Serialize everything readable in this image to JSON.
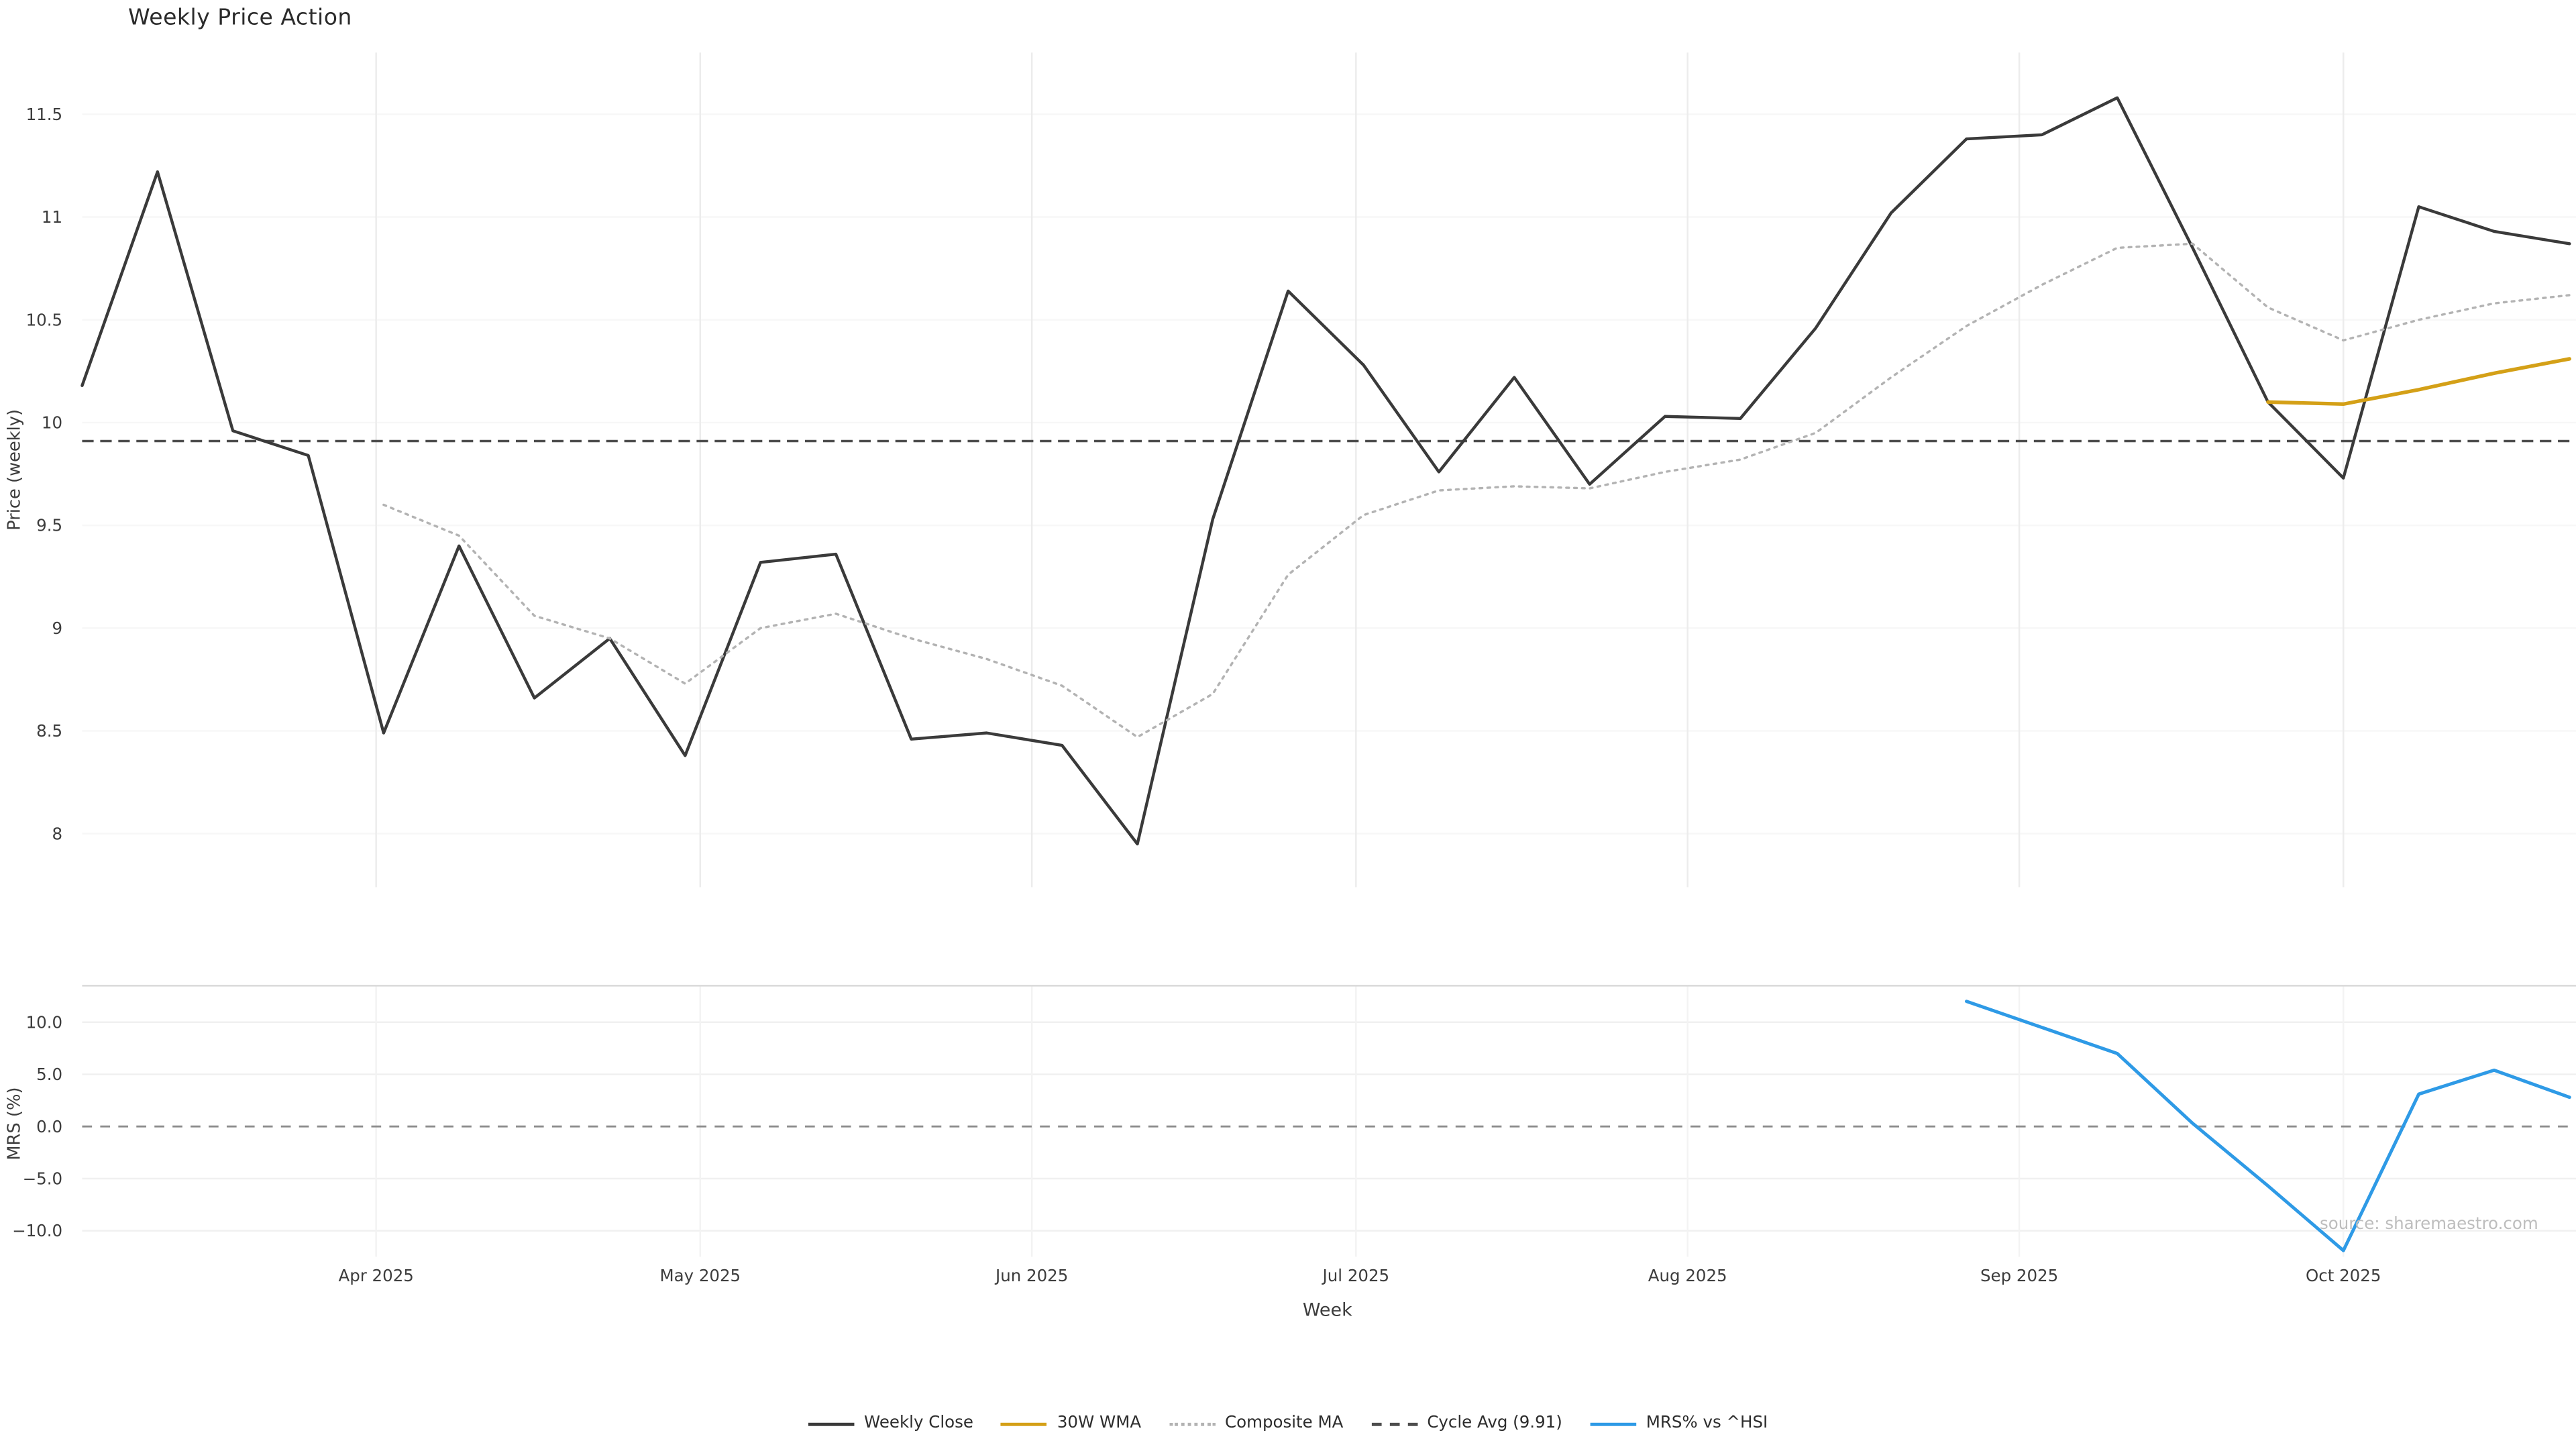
{
  "page": {
    "title": "Weekly Price Action",
    "source_note": "source: sharemaestro.com"
  },
  "axes": {
    "top_ylabel": "Price (weekly)",
    "bottom_ylabel": "MRS (%)",
    "xlabel": "Week"
  },
  "legend": [
    {
      "label": "Weekly Close",
      "color": "#3a3a3a",
      "dash": "solid"
    },
    {
      "label": "30W WMA",
      "color": "#d4a017",
      "dash": "solid"
    },
    {
      "label": "Composite MA",
      "color": "#b3b3b3",
      "dash": "dotted"
    },
    {
      "label": "Cycle Avg (9.91)",
      "color": "#4d4d4d",
      "dash": "dashed"
    },
    {
      "label": "MRS% vs ^HSI",
      "color": "#2e9ae6",
      "dash": "solid"
    }
  ],
  "chart_data": [
    {
      "type": "line",
      "panel": "price",
      "title": "Weekly Price Action",
      "xlabel": "",
      "ylabel": "Price (weekly)",
      "x_unit": "week_index",
      "ylim": [
        7.74,
        11.8
      ],
      "grid": true,
      "yticks": [
        {
          "value": 8,
          "label": "8"
        },
        {
          "value": 8.5,
          "label": "8.5"
        },
        {
          "value": 9,
          "label": "9"
        },
        {
          "value": 9.5,
          "label": "9.5"
        },
        {
          "value": 10,
          "label": "10"
        },
        {
          "value": 10.5,
          "label": "10.5"
        },
        {
          "value": 11,
          "label": "11"
        },
        {
          "value": 11.5,
          "label": "11.5"
        }
      ],
      "series": [
        {
          "name": "Weekly Close",
          "color": "#3a3a3a",
          "dash": "solid",
          "width": 1.8,
          "start_index": 0,
          "values": [
            10.18,
            11.22,
            9.96,
            9.84,
            8.49,
            9.4,
            8.66,
            8.95,
            8.38,
            9.32,
            9.36,
            8.46,
            8.49,
            8.43,
            7.95,
            9.53,
            10.64,
            10.28,
            9.76,
            10.22,
            9.7,
            10.03,
            10.02,
            10.46,
            11.02,
            11.38,
            11.4,
            11.58,
            10.85,
            10.1,
            9.73,
            11.05,
            10.93,
            10.87
          ]
        },
        {
          "name": "30W WMA",
          "color": "#d4a017",
          "dash": "solid",
          "width": 2.2,
          "start_index": 29,
          "values": [
            10.1,
            10.09,
            10.16,
            10.24,
            10.31
          ]
        },
        {
          "name": "Composite MA",
          "color": "#b3b3b3",
          "dash": "dotted",
          "width": 1.4,
          "start_index": 4,
          "values": [
            9.6,
            9.45,
            9.06,
            8.95,
            8.73,
            9.0,
            9.07,
            8.95,
            8.85,
            8.72,
            8.47,
            8.68,
            9.26,
            9.55,
            9.67,
            9.69,
            9.68,
            9.76,
            9.82,
            9.95,
            10.22,
            10.47,
            10.67,
            10.85,
            10.87,
            10.56,
            10.4,
            10.5,
            10.58,
            10.62
          ]
        }
      ],
      "hlines": [
        {
          "label": "Cycle Avg (9.91)",
          "value": 9.91,
          "color": "#4d4d4d",
          "dash": "dashed"
        }
      ]
    },
    {
      "type": "line",
      "panel": "mrs",
      "title": "",
      "xlabel": "Week",
      "ylabel": "MRS (%)",
      "x_unit": "week_index",
      "ylim": [
        -12.5,
        13.5
      ],
      "grid": true,
      "yticks": [
        {
          "value": 10,
          "label": "10.0"
        },
        {
          "value": 5,
          "label": "5.0"
        },
        {
          "value": 0,
          "label": "0.0"
        },
        {
          "value": -5,
          "label": "−5.0"
        },
        {
          "value": -10,
          "label": "−10.0"
        }
      ],
      "xticks": [
        {
          "pos": 3.9,
          "label": "Apr 2025"
        },
        {
          "pos": 8.2,
          "label": "May 2025"
        },
        {
          "pos": 12.6,
          "label": "Jun 2025"
        },
        {
          "pos": 16.9,
          "label": "Jul 2025"
        },
        {
          "pos": 21.3,
          "label": "Aug 2025"
        },
        {
          "pos": 25.7,
          "label": "Sep 2025"
        },
        {
          "pos": 30.0,
          "label": "Oct 2025"
        }
      ],
      "series": [
        {
          "name": "MRS% vs ^HSI",
          "color": "#2e9ae6",
          "dash": "solid",
          "width": 2.0,
          "start_index": 25,
          "values": [
            12.0,
            9.5,
            7.0,
            0.3,
            -5.7,
            -11.9,
            3.1,
            5.4,
            2.8
          ]
        }
      ],
      "hlines": [
        {
          "label": "zero",
          "value": 0,
          "color": "#8c8c8c",
          "dash": "dashed"
        }
      ]
    }
  ]
}
